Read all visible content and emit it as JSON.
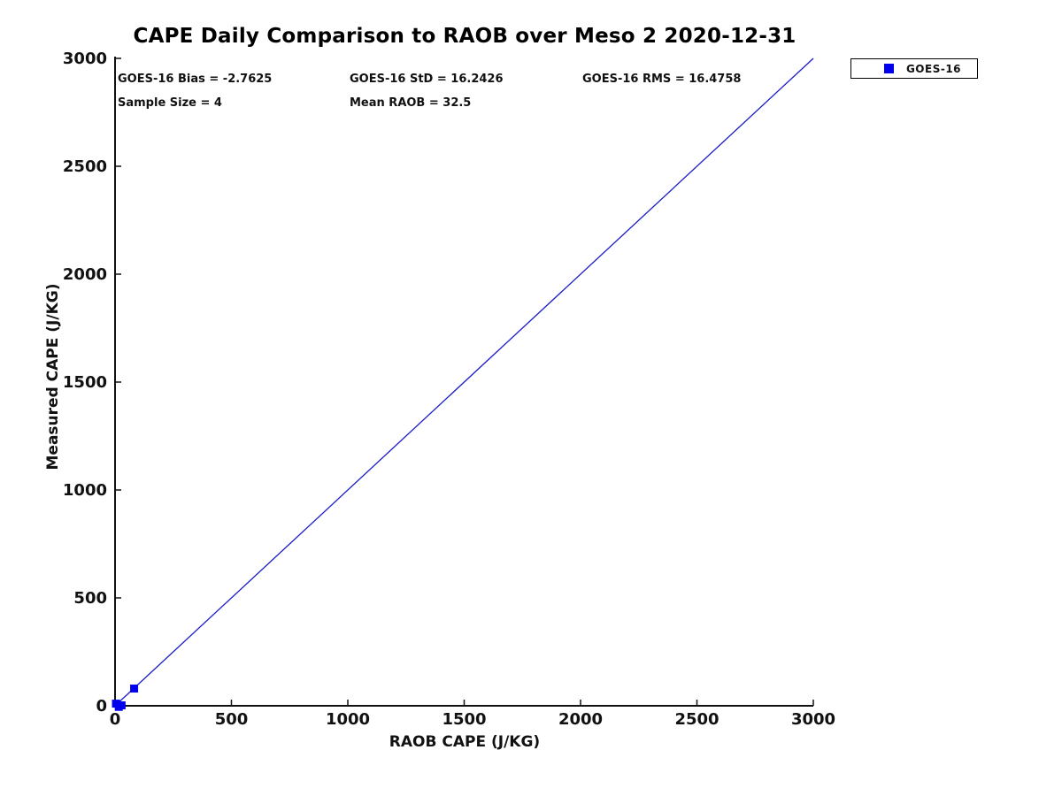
{
  "title": "CAPE Daily Comparison to RAOB over Meso 2 2020-12-31",
  "annotations": {
    "bias": "GOES-16 Bias = -2.7625",
    "std": "GOES-16 StD = 16.2426",
    "rms": "GOES-16 RMS = 16.4758",
    "sample_size": "Sample Size = 4",
    "mean_raob": "Mean RAOB = 32.5"
  },
  "legend": {
    "label": "GOES-16",
    "marker": "square",
    "marker_color": "#0000ee",
    "position": "top-right-outside"
  },
  "colors": {
    "background": "#ffffff",
    "axis": "#111111",
    "identity_line": "#1b1bc8",
    "marker": "#0000ee"
  },
  "chart_data": {
    "type": "scatter",
    "title": "CAPE Daily Comparison to RAOB over Meso 2 2020-12-31",
    "xlabel": "RAOB CAPE (J/KG)",
    "ylabel": "Measured CAPE (J/KG)",
    "xlim": [
      0,
      3000
    ],
    "ylim": [
      0,
      3000
    ],
    "xticks": [
      0,
      500,
      1000,
      1500,
      2000,
      2500,
      3000
    ],
    "yticks": [
      0,
      500,
      1000,
      1500,
      2000,
      2500,
      3000
    ],
    "grid": false,
    "legend_position": "top-right-outside",
    "series": [
      {
        "name": "GOES-16",
        "marker": "square",
        "color": "#0000ee",
        "points_note": "positions estimated from pixels; cluster of 3 overlapping points near origin plus one at ~(82,80)",
        "points": [
          [
            4,
            10
          ],
          [
            16,
            -5
          ],
          [
            28,
            2
          ],
          [
            82,
            80
          ]
        ]
      }
    ],
    "reference_line": {
      "name": "identity-line",
      "color": "#1b1bc8",
      "from": [
        0,
        0
      ],
      "to": [
        3000,
        3000
      ]
    },
    "stats": {
      "goes16_bias": -2.7625,
      "goes16_std": 16.2426,
      "goes16_rms": 16.4758,
      "sample_size": 4,
      "mean_raob": 32.5
    }
  }
}
